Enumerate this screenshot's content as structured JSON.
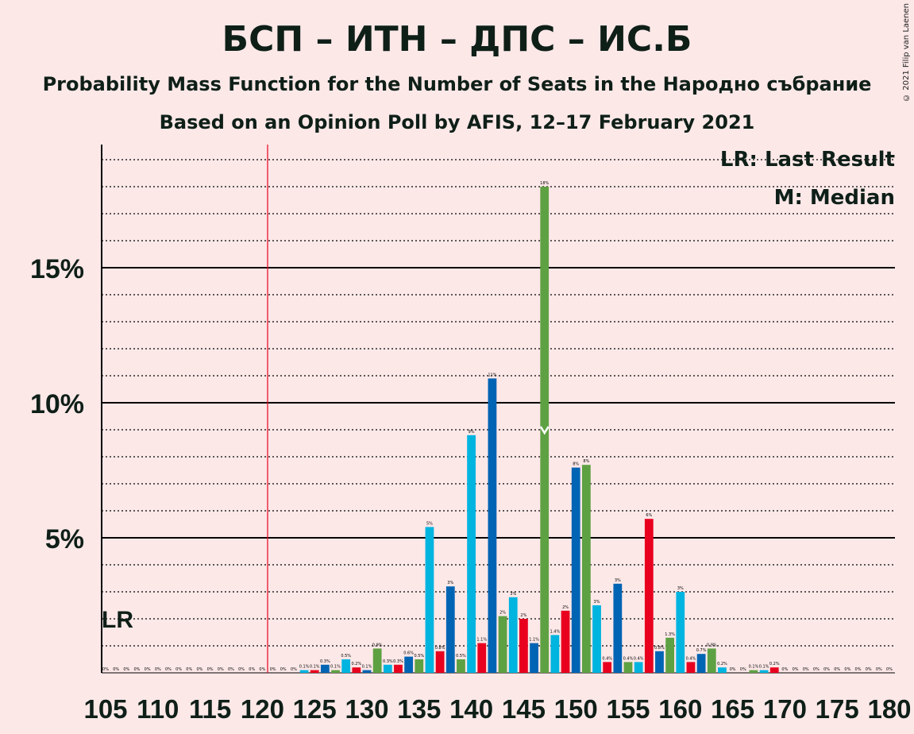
{
  "title": "БСП – ИТН – ДПС – ИС.Б",
  "subtitle1": "Probability Mass Function for the Number of Seats in the Народно събрание",
  "subtitle2": "Based on an Opinion Poll by AFIS, 12–17 February 2021",
  "copyright": "© 2021 Filip van Laenen",
  "legend": {
    "lr": "LR: Last Result",
    "m": "M: Median"
  },
  "lr_label": "LR",
  "colors": {
    "red": "#e8001e",
    "blue": "#0064b4",
    "green": "#5ea143",
    "cyan": "#00b4e0",
    "background": "#fde8e8",
    "lr_line": "#e8001e"
  },
  "chart_data": {
    "type": "bar",
    "x": [
      105,
      106,
      107,
      108,
      109,
      110,
      111,
      112,
      113,
      114,
      115,
      116,
      117,
      118,
      119,
      120,
      121,
      122,
      123,
      124,
      125,
      126,
      127,
      128,
      129,
      130,
      131,
      132,
      133,
      134,
      135,
      136,
      137,
      138,
      139,
      140,
      141,
      142,
      143,
      144,
      145,
      146,
      147,
      148,
      149,
      150,
      151,
      152,
      153,
      154,
      155,
      156,
      157,
      158,
      159,
      160,
      161,
      162,
      163,
      164,
      165,
      166,
      167,
      168,
      169,
      170,
      171,
      172,
      173,
      174,
      175,
      176,
      177,
      178,
      179,
      180
    ],
    "values": [
      0,
      0,
      0,
      0,
      0,
      0,
      0,
      0,
      0,
      0,
      0,
      0,
      0,
      0,
      0,
      0,
      0,
      0,
      0,
      0.1,
      0.1,
      0.3,
      0.1,
      0.5,
      0.2,
      0.1,
      0.9,
      0.3,
      0.3,
      0.6,
      0.5,
      5.4,
      0.8,
      3.2,
      0.5,
      8.8,
      1.1,
      10.9,
      2.1,
      2.8,
      2.0,
      1.1,
      18.0,
      1.4,
      2.3,
      7.6,
      7.7,
      2.5,
      0.4,
      3.3,
      0.4,
      0.4,
      5.7,
      0.8,
      1.3,
      3.0,
      0.4,
      0.7,
      0.9,
      0.2,
      0,
      0,
      0.1,
      0.1,
      0.2,
      0,
      0,
      0,
      0,
      0,
      0,
      0,
      0,
      0,
      0,
      0
    ],
    "data_labels": [
      "0%",
      "0%",
      "0%",
      "0%",
      "0%",
      "0%",
      "0%",
      "0%",
      "0%",
      "0%",
      "0%",
      "0%",
      "0%",
      "0%",
      "0%",
      "0%",
      "0%",
      "0%",
      "0%",
      "0.1%",
      "0.1%",
      "0.3%",
      "0.1%",
      "0.5%",
      "0.2%",
      "0.1%",
      "0.9%",
      "0.3%",
      "0.3%",
      "0.6%",
      "0.5%",
      "5%",
      "0.8%",
      "3%",
      "0.5%",
      "9%",
      "1.1%",
      "11%",
      "2%",
      "3%",
      "2%",
      "1.1%",
      "18%",
      "1.4%",
      "2%",
      "8%",
      "8%",
      "3%",
      "0.4%",
      "3%",
      "0.4%",
      "0.4%",
      "6%",
      "0.8%",
      "1.3%",
      "3%",
      "0.4%",
      "0.7%",
      "0.9%",
      "0.2%",
      "0%",
      "0%",
      "0.1%",
      "0.1%",
      "0.2%",
      "0%",
      "0%",
      "0%",
      "0%",
      "0%",
      "0%",
      "0%",
      "0%",
      "0%",
      "0%",
      "0%"
    ],
    "colors": [
      "red",
      "blue",
      "green",
      "cyan"
    ],
    "x_ticks": [
      105,
      110,
      115,
      120,
      125,
      130,
      135,
      140,
      145,
      150,
      155,
      160,
      165,
      170,
      175,
      180
    ],
    "y_ticks": [
      "5%",
      "10%",
      "15%"
    ],
    "y_tick_values": [
      5,
      10,
      15
    ],
    "ylim": [
      0,
      19.6
    ],
    "last_result": 121,
    "median": 147,
    "grid": true
  }
}
